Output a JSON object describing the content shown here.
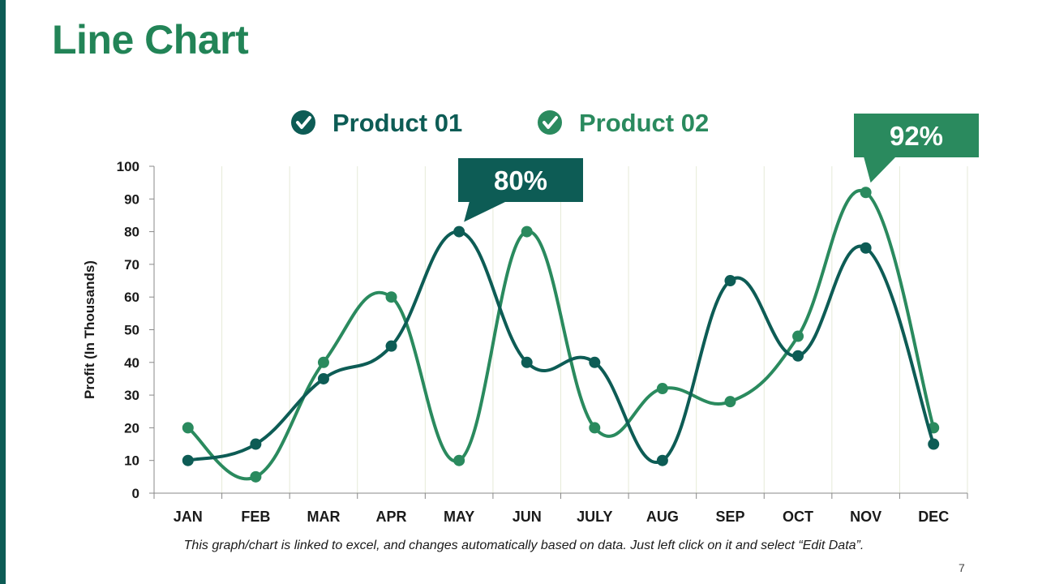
{
  "slide": {
    "title": "Line Chart",
    "caption": "This graph/chart is linked to excel, and changes automatically based on data. Just left click on it and select “Edit Data”.",
    "page_number": "7"
  },
  "colors": {
    "product01": "#0d5c55",
    "product02": "#2a8a5e",
    "title": "#228457",
    "grid": "#e6ead8",
    "axis": "#888888",
    "text": "#1a1a1a"
  },
  "chart_data": {
    "type": "line",
    "title": "",
    "xlabel": "",
    "ylabel": "Profit (In Thousands)",
    "categories": [
      "JAN",
      "FEB",
      "MAR",
      "APR",
      "MAY",
      "JUN",
      "JULY",
      "AUG",
      "SEP",
      "OCT",
      "NOV",
      "DEC"
    ],
    "ylim": [
      0,
      100
    ],
    "yticks": [
      0,
      10,
      20,
      30,
      40,
      50,
      60,
      70,
      80,
      90,
      100
    ],
    "series": [
      {
        "name": "Product 01",
        "values": [
          10,
          15,
          35,
          45,
          80,
          40,
          40,
          10,
          65,
          42,
          75,
          15
        ]
      },
      {
        "name": "Product 02",
        "values": [
          20,
          5,
          40,
          60,
          10,
          80,
          20,
          32,
          28,
          48,
          92,
          20
        ]
      }
    ],
    "legend_position": "top-center",
    "callouts": [
      {
        "text": "80%",
        "series": "Product 01",
        "category": "MAY"
      },
      {
        "text": "92%",
        "series": "Product 02",
        "category": "NOV"
      }
    ]
  }
}
